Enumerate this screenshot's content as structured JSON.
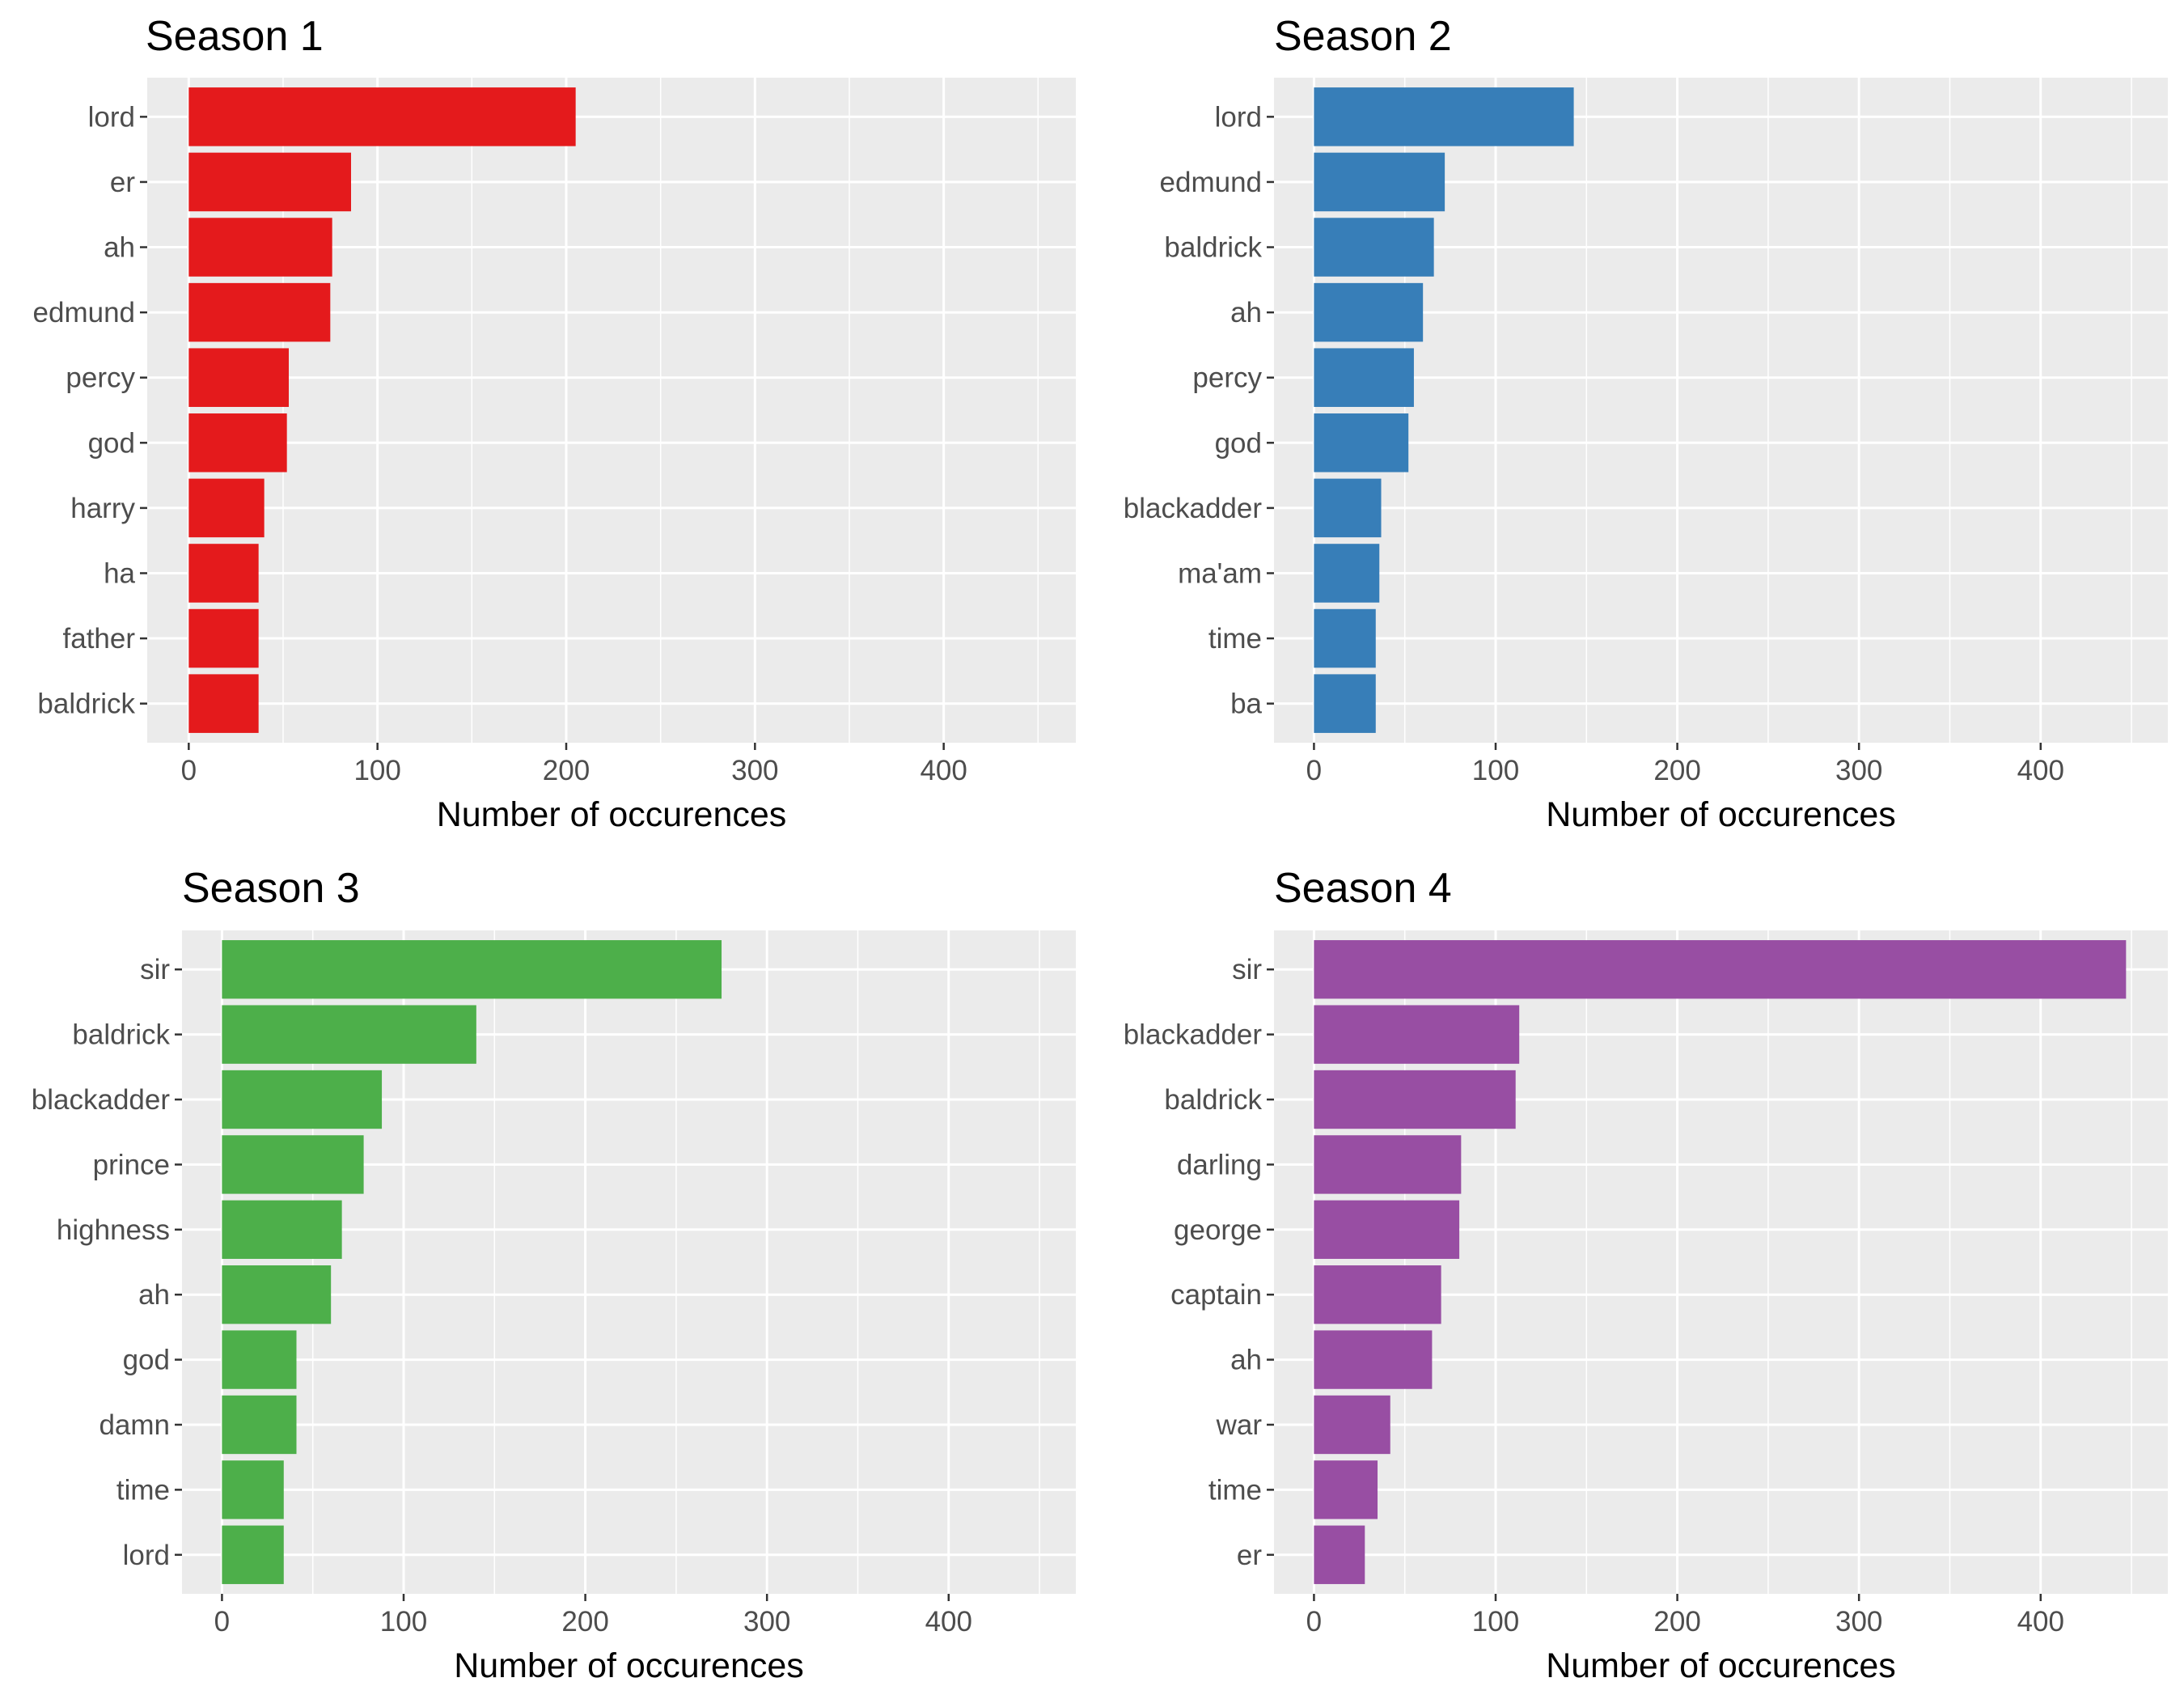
{
  "chart_data": [
    {
      "type": "bar",
      "orientation": "horizontal",
      "title": "Season 1",
      "xlabel": "Number of occurences",
      "ylabel": "",
      "xlim": [
        -22,
        470
      ],
      "ticks": [
        0,
        100,
        200,
        300,
        400
      ],
      "grid": true,
      "color": "#e41a1c",
      "categories": [
        "lord",
        "er",
        "ah",
        "edmund",
        "percy",
        "god",
        "harry",
        "ha",
        "father",
        "baldrick"
      ],
      "values": [
        205,
        86,
        76,
        75,
        53,
        52,
        40,
        37,
        37,
        37
      ]
    },
    {
      "type": "bar",
      "orientation": "horizontal",
      "title": "Season 2",
      "xlabel": "Number of occurences",
      "ylabel": "",
      "xlim": [
        -22,
        470
      ],
      "ticks": [
        0,
        100,
        200,
        300,
        400
      ],
      "grid": true,
      "color": "#377eb8",
      "categories": [
        "lord",
        "edmund",
        "baldrick",
        "ah",
        "percy",
        "god",
        "blackadder",
        "ma'am",
        "time",
        "ba"
      ],
      "values": [
        143,
        72,
        66,
        60,
        55,
        52,
        37,
        36,
        34,
        34
      ]
    },
    {
      "type": "bar",
      "orientation": "horizontal",
      "title": "Season 3",
      "xlabel": "Number of occurences",
      "ylabel": "",
      "xlim": [
        -22,
        470
      ],
      "ticks": [
        0,
        100,
        200,
        300,
        400
      ],
      "grid": true,
      "color": "#4daf4a",
      "categories": [
        "sir",
        "baldrick",
        "blackadder",
        "prince",
        "highness",
        "ah",
        "god",
        "damn",
        "time",
        "lord"
      ],
      "values": [
        275,
        140,
        88,
        78,
        66,
        60,
        41,
        41,
        34,
        34
      ]
    },
    {
      "type": "bar",
      "orientation": "horizontal",
      "title": "Season 4",
      "xlabel": "Number of occurences",
      "ylabel": "",
      "xlim": [
        -22,
        470
      ],
      "ticks": [
        0,
        100,
        200,
        300,
        400
      ],
      "grid": true,
      "color": "#984ea3",
      "categories": [
        "sir",
        "blackadder",
        "baldrick",
        "darling",
        "george",
        "captain",
        "ah",
        "war",
        "time",
        "er"
      ],
      "values": [
        447,
        113,
        111,
        81,
        80,
        70,
        65,
        42,
        35,
        28
      ]
    }
  ]
}
